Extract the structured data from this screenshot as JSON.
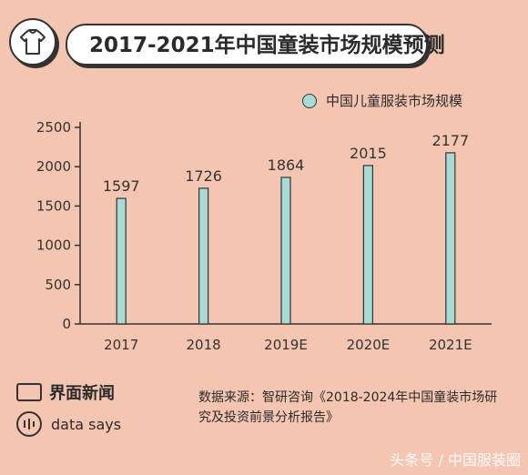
{
  "header": {
    "title": "2017-2021年中国童装市场规模预测",
    "icon": "shirt-icon"
  },
  "legend": {
    "label": "中国儿童服装市场规模",
    "color": "#a7dcd6"
  },
  "chart_data": {
    "type": "bar",
    "categories": [
      "2017",
      "2018",
      "2019E",
      "2020E",
      "2021E"
    ],
    "values": [
      1597,
      1726,
      1864,
      2015,
      2177
    ],
    "series": [
      {
        "name": "中国儿童服装市场规模",
        "values": [
          1597,
          1726,
          1864,
          2015,
          2177
        ]
      }
    ],
    "ylim": [
      0,
      2500
    ],
    "yticks": [
      0,
      500,
      1000,
      1500,
      2000,
      2500
    ],
    "grid": false,
    "legend_position": "top-right"
  },
  "footer": {
    "brand": "界面新闻",
    "brand_icon": "newspaper-icon",
    "data_says": "data says",
    "data_icon": "bars-icon",
    "source": "数据来源：智研咨询《2018-2024年中国童装市场研究及投资前景分析报告》"
  },
  "watermark": "头条号 / 中国服装圈",
  "colors": {
    "background": "#f4c6b1",
    "bar": "#a7dcd6",
    "text": "#2b2b2b"
  }
}
